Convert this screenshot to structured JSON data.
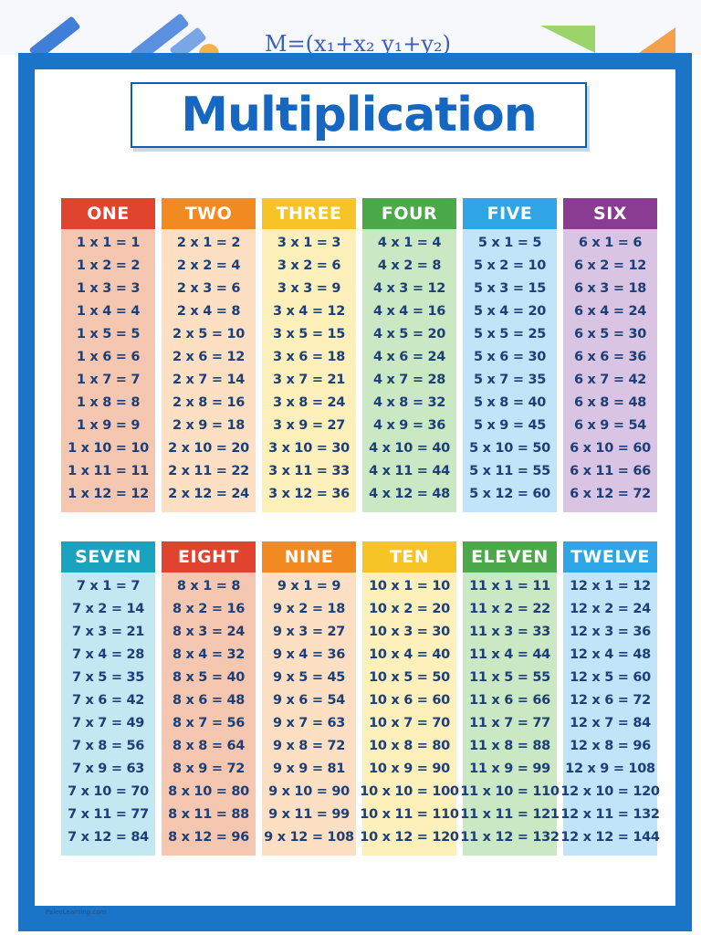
{
  "formula": "M=(x₁+x₂   y₁+y₂)",
  "title": "Multiplication",
  "footer": "PaleoLearning.com",
  "tables": [
    {
      "name": "ONE",
      "head": "#e0442e",
      "body": "#f6c7b0",
      "facts": [
        "1 x 1 = 1",
        "1 x 2 = 2",
        "1 x 3 = 3",
        "1 x 4 = 4",
        "1 x 5 = 5",
        "1 x 6 = 6",
        "1 x 7 = 7",
        "1 x 8 = 8",
        "1 x 9 = 9",
        "1 x 10 = 10",
        "1 x 11 = 11",
        "1 x 12 = 12"
      ]
    },
    {
      "name": "TWO",
      "head": "#f28a22",
      "body": "#fde0c3",
      "facts": [
        "2 x 1 = 2",
        "2 x 2 = 4",
        "2 x 3 = 6",
        "2 x 4 = 8",
        "2 x 5 = 10",
        "2 x 6 = 12",
        "2 x 7 = 14",
        "2 x 8 = 16",
        "2 x 9 = 18",
        "2 x 10 = 20",
        "2 x 11 = 22",
        "2 x 12 = 24"
      ]
    },
    {
      "name": "THREE",
      "head": "#f7c427",
      "body": "#fdf0bb",
      "facts": [
        "3 x 1 = 3",
        "3 x 2 = 6",
        "3 x 3 = 9",
        "3 x 4 = 12",
        "3 x 5 = 15",
        "3 x 6 = 18",
        "3 x 7 = 21",
        "3 x 8 = 24",
        "3 x 9 = 27",
        "3 x 10 = 30",
        "3 x 11 = 33",
        "3 x 12 = 36"
      ]
    },
    {
      "name": "FOUR",
      "head": "#4ca94a",
      "body": "#cbe8c4",
      "facts": [
        "4 x 1 = 4",
        "4 x 2 = 8",
        "4 x 3 = 12",
        "4 x 4 = 16",
        "4 x 5 = 20",
        "4 x 6 = 24",
        "4 x 7 = 28",
        "4 x 8 = 32",
        "4 x 9 = 36",
        "4 x 10 = 40",
        "4 x 11 = 44",
        "4 x 12 = 48"
      ]
    },
    {
      "name": "FIVE",
      "head": "#2ea6e6",
      "body": "#c2e4f8",
      "facts": [
        "5 x 1 = 5",
        "5 x 2 = 10",
        "5 x 3 = 15",
        "5 x 4 = 20",
        "5 x 5 = 25",
        "5 x 6 = 30",
        "5 x 7 = 35",
        "5 x 8 = 40",
        "5 x 9 = 45",
        "5 x 10 = 50",
        "5 x 11 = 55",
        "5 x 12 = 60"
      ]
    },
    {
      "name": "SIX",
      "head": "#8a3b92",
      "body": "#d9c4e3",
      "facts": [
        "6 x 1 = 6",
        "6 x 2 = 12",
        "6 x 3 = 18",
        "6 x 4 = 24",
        "6 x 5 = 30",
        "6 x 6 = 36",
        "6 x 7 = 42",
        "6 x 8 = 48",
        "6 x 9 = 54",
        "6 x 10 = 60",
        "6 x 11 = 66",
        "6 x 12 = 72"
      ]
    },
    {
      "name": "SEVEN",
      "head": "#1aa3be",
      "body": "#c3e8f1",
      "facts": [
        "7 x 1 = 7",
        "7 x 2 = 14",
        "7 x 3 = 21",
        "7 x 4 = 28",
        "7 x 5 = 35",
        "7 x 6 = 42",
        "7 x 7 = 49",
        "7 x 8 = 56",
        "7 x 9 = 63",
        "7 x 10 = 70",
        "7 x 11 = 77",
        "7 x 12 = 84"
      ]
    },
    {
      "name": "EIGHT",
      "head": "#e0442e",
      "body": "#f6c7b0",
      "facts": [
        "8 x 1 = 8",
        "8 x 2 = 16",
        "8 x 3 = 24",
        "8 x 4 = 32",
        "8 x 5 = 40",
        "8 x 6 = 48",
        "8 x 7 = 56",
        "8 x 8 = 64",
        "8 x 9 = 72",
        "8 x 10 = 80",
        "8 x 11 = 88",
        "8 x 12 = 96"
      ]
    },
    {
      "name": "NINE",
      "head": "#f28a22",
      "body": "#fde0c3",
      "facts": [
        "9 x 1 = 9",
        "9 x 2 = 18",
        "9 x 3 = 27",
        "9 x 4 = 36",
        "9 x 5 = 45",
        "9 x 6 = 54",
        "9 x 7 = 63",
        "9 x 8 = 72",
        "9 x 9 = 81",
        "9 x 10 = 90",
        "9 x 11 = 99",
        "9 x 12 = 108"
      ]
    },
    {
      "name": "TEN",
      "head": "#f7c427",
      "body": "#fdf0bb",
      "facts": [
        "10 x 1 = 10",
        "10 x 2 = 20",
        "10 x 3 = 30",
        "10 x 4 = 40",
        "10 x 5 = 50",
        "10 x 6 = 60",
        "10 x 7 = 70",
        "10 x 8 = 80",
        "10 x 9 = 90",
        "10 x 10 = 100",
        "10 x 11 = 110",
        "10 x 12 = 120"
      ]
    },
    {
      "name": "ELEVEN",
      "head": "#4ca94a",
      "body": "#cbe8c4",
      "facts": [
        "11 x 1 = 11",
        "11 x 2 = 22",
        "11 x 3 = 33",
        "11 x 4 = 44",
        "11 x 5 = 55",
        "11 x 6 = 66",
        "11 x 7 = 77",
        "11 x 8 = 88",
        "11 x 9 = 99",
        "11 x 10 = 110",
        "11 x 11 = 121",
        "11 x 12 = 132"
      ]
    },
    {
      "name": "TWELVE",
      "head": "#2ea6e6",
      "body": "#c2e4f8",
      "facts": [
        "12 x 1 = 12",
        "12 x 2 = 24",
        "12 x 3 = 36",
        "12 x 4 = 48",
        "12 x 5 = 60",
        "12 x 6 = 72",
        "12 x 7 = 84",
        "12 x 8 = 96",
        "12 x 9 = 108",
        "12 x 10 = 120",
        "12 x 11 = 132",
        "12 x 12 = 144"
      ]
    }
  ]
}
